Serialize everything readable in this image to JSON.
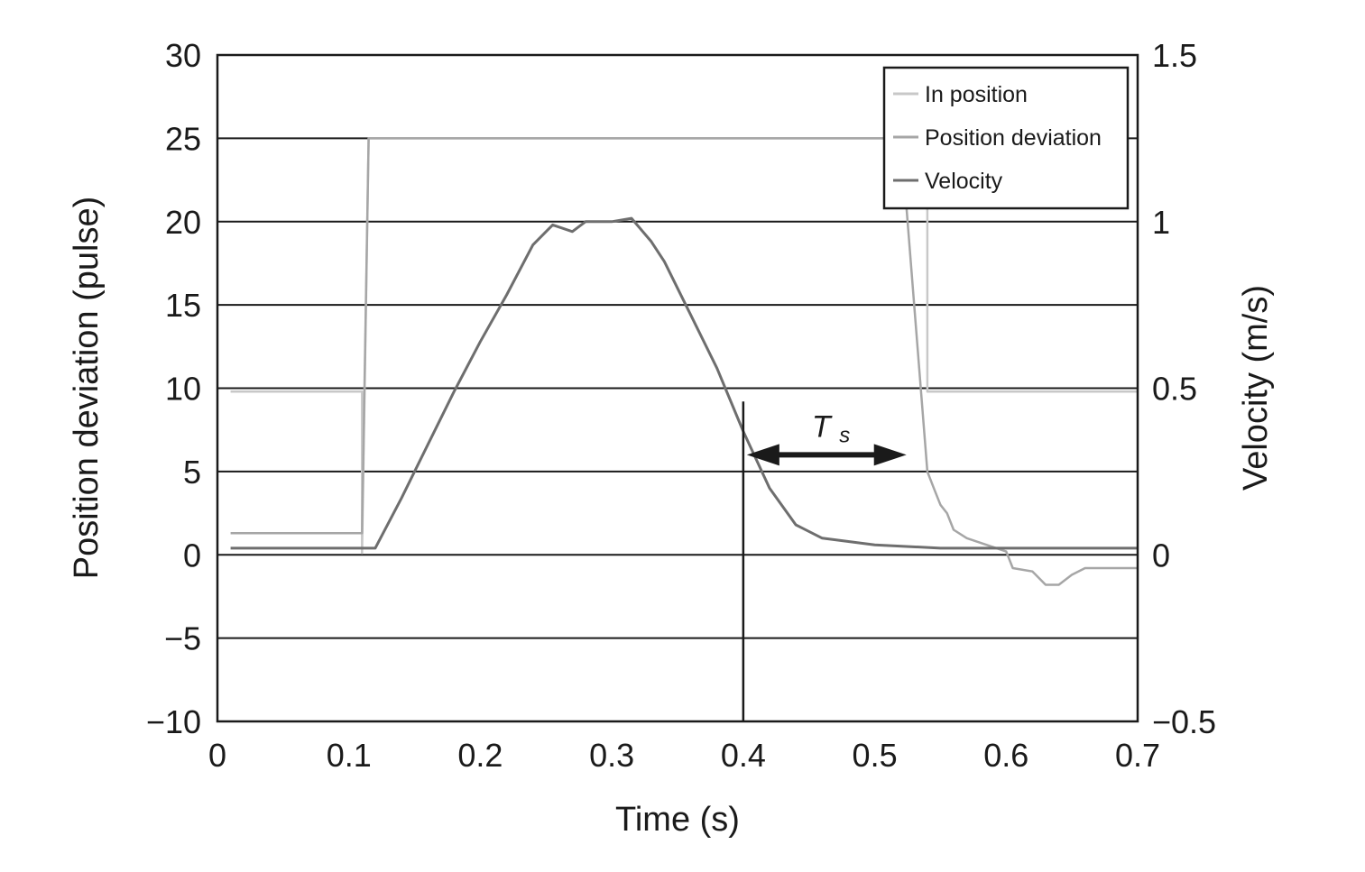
{
  "chart_data": {
    "type": "line",
    "xlabel": "Time (s)",
    "ylabel": "Position deviation (pulse)",
    "y2label": "Velocity (m/s)",
    "xlim": [
      0,
      0.7
    ],
    "ylim": [
      -10,
      30
    ],
    "y2lim": [
      -0.5,
      1.5
    ],
    "x_ticks": [
      "0",
      "0.1",
      "0.2",
      "0.3",
      "0.4",
      "0.5",
      "0.6",
      "0.7"
    ],
    "y_ticks": [
      "−10",
      "−5",
      "0",
      "5",
      "10",
      "15",
      "20",
      "25",
      "30"
    ],
    "y2_ticks": [
      "−0.5",
      "0",
      "0.5",
      "1",
      "1.5"
    ],
    "grid": "horizontal",
    "legend": "top-right",
    "series": [
      {
        "name": "In position",
        "axis": "left",
        "color": "#c8c8c8",
        "x": [
          0.01,
          0.11,
          0.11,
          0.115,
          0.52,
          0.54,
          0.54,
          0.7
        ],
        "y": [
          9.8,
          9.8,
          0.1,
          25,
          25,
          25,
          9.8,
          9.8
        ]
      },
      {
        "name": "Position deviation",
        "axis": "left",
        "color": "#a6a6a6",
        "x": [
          0.01,
          0.11,
          0.115,
          0.52,
          0.53,
          0.54,
          0.545,
          0.55,
          0.555,
          0.56,
          0.57,
          0.6,
          0.605,
          0.62,
          0.63,
          0.64,
          0.65,
          0.66,
          0.67,
          0.7
        ],
        "y": [
          1.3,
          1.3,
          25,
          25,
          15,
          5,
          4,
          3,
          2.5,
          1.5,
          1,
          0.2,
          -0.8,
          -1,
          -1.8,
          -1.8,
          -1.2,
          -0.8,
          -0.8,
          -0.8
        ]
      },
      {
        "name": "Velocity",
        "axis": "right",
        "color": "#6e6e6e",
        "x": [
          0.01,
          0.12,
          0.14,
          0.16,
          0.18,
          0.2,
          0.22,
          0.24,
          0.255,
          0.27,
          0.28,
          0.3,
          0.315,
          0.33,
          0.34,
          0.36,
          0.38,
          0.4,
          0.42,
          0.44,
          0.46,
          0.48,
          0.5,
          0.55,
          0.6,
          0.7
        ],
        "y": [
          0.02,
          0.02,
          0.17,
          0.33,
          0.49,
          0.64,
          0.78,
          0.93,
          0.99,
          0.97,
          1.0,
          1.0,
          1.01,
          0.94,
          0.88,
          0.72,
          0.56,
          0.37,
          0.2,
          0.09,
          0.05,
          0.04,
          0.03,
          0.02,
          0.02,
          0.02
        ]
      }
    ],
    "annotations": {
      "settling_marker_x": 0.4,
      "settling_marker_top_y": 9.2,
      "arrow_x": [
        0.4,
        0.52
      ],
      "arrow_y": 6,
      "arrow_label_main": "T",
      "arrow_label_sub": "s"
    }
  }
}
